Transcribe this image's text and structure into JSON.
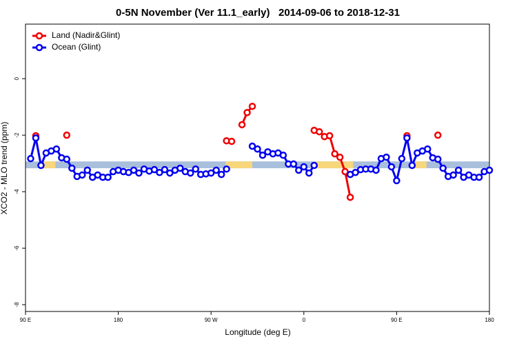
{
  "chart_data": {
    "type": "line",
    "title": "0-5N November (Ver 11.1_early)   2014-09-06 to 2018-12-31",
    "x_label": "Longitude (deg E)",
    "y_label": "XCO2 - MLO trend (ppm)",
    "xlim": [
      90,
      540
    ],
    "ylim": [
      -8.24,
      1.93
    ],
    "xticks": [
      {
        "value": 90,
        "label": "90 E"
      },
      180,
      {
        "value": 270,
        "label": "90 W"
      },
      {
        "value": 360,
        "label": "0"
      },
      {
        "value": 450,
        "label": "90 E"
      },
      {
        "value": 540,
        "label": "180"
      }
    ],
    "yticks": [
      0,
      -2,
      -4,
      -6,
      -8
    ],
    "legend": "top-left",
    "band": {
      "lower": -3.17,
      "upper": -2.93,
      "color": "#a9bfdc"
    },
    "band_highlights": {
      "color": "#f7d67c",
      "ranges": [
        [
          108,
          119
        ],
        [
          284,
          310
        ],
        [
          371,
          408
        ],
        [
          468,
          479
        ]
      ]
    },
    "x": [
      95,
      100,
      105,
      110,
      115,
      120,
      125,
      130,
      135,
      140,
      145,
      150,
      155,
      160,
      165,
      170,
      175,
      180,
      185,
      190,
      195,
      200,
      205,
      210,
      215,
      220,
      225,
      230,
      235,
      240,
      245,
      250,
      255,
      260,
      265,
      270,
      275,
      280,
      285,
      290,
      295,
      300,
      305,
      310,
      315,
      320,
      325,
      330,
      335,
      340,
      345,
      350,
      355,
      360,
      365,
      370,
      375,
      380,
      385,
      390,
      395,
      400,
      405,
      410,
      415,
      420,
      425,
      430,
      435,
      440,
      445,
      450,
      455,
      460,
      465,
      470,
      475,
      480,
      485,
      490,
      495,
      500,
      505,
      510,
      515,
      520,
      525,
      530,
      535,
      540
    ],
    "series": [
      {
        "name": "Land (Nadir&Glint)",
        "color": "#ee0000",
        "values": [
          null,
          -2.02,
          null,
          null,
          null,
          null,
          null,
          -2.0,
          null,
          null,
          null,
          null,
          null,
          null,
          null,
          null,
          null,
          null,
          null,
          null,
          null,
          null,
          null,
          null,
          null,
          null,
          null,
          null,
          null,
          null,
          null,
          null,
          null,
          null,
          null,
          null,
          null,
          null,
          -2.2,
          -2.22,
          null,
          -1.63,
          -1.2,
          -0.98,
          null,
          null,
          null,
          null,
          null,
          null,
          null,
          null,
          null,
          null,
          null,
          -1.83,
          -1.88,
          -2.05,
          -2.02,
          -2.66,
          -2.78,
          -3.29,
          -4.2,
          null,
          null,
          null,
          null,
          null,
          null,
          null,
          null,
          null,
          null,
          -2.02,
          null,
          null,
          null,
          null,
          null,
          -2.0,
          null,
          null,
          null,
          null,
          null,
          null,
          null,
          null,
          null,
          null
        ]
      },
      {
        "name": "Ocean (Glint)",
        "color": "#0000ee",
        "values": [
          -2.83,
          -2.1,
          -3.07,
          -2.63,
          -2.56,
          -2.49,
          -2.8,
          -2.85,
          -3.17,
          -3.46,
          -3.41,
          -3.24,
          -3.49,
          -3.41,
          -3.49,
          -3.49,
          -3.29,
          -3.24,
          -3.29,
          -3.32,
          -3.24,
          -3.34,
          -3.2,
          -3.27,
          -3.22,
          -3.32,
          -3.22,
          -3.34,
          -3.24,
          -3.17,
          -3.29,
          -3.34,
          -3.2,
          -3.39,
          -3.37,
          -3.34,
          -3.24,
          -3.39,
          -3.2,
          null,
          null,
          null,
          null,
          -2.39,
          -2.49,
          -2.71,
          -2.59,
          -2.66,
          -2.63,
          -2.71,
          -3.02,
          -3.02,
          -3.24,
          -3.12,
          -3.34,
          -3.07,
          null,
          null,
          null,
          null,
          null,
          null,
          -3.39,
          -3.32,
          -3.22,
          -3.2,
          -3.2,
          -3.24,
          -2.83,
          -2.78,
          -3.12,
          -3.61,
          -2.83,
          -2.1,
          -3.07,
          -2.63,
          -2.56,
          -2.49,
          -2.8,
          -2.85,
          -3.17,
          -3.46,
          -3.41,
          -3.24,
          -3.49,
          -3.41,
          -3.49,
          -3.49,
          -3.29,
          -3.24
        ]
      }
    ]
  }
}
